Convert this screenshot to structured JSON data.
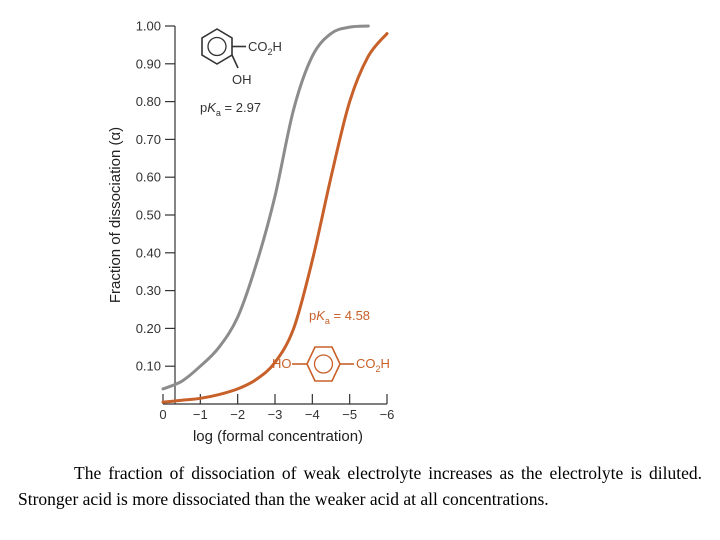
{
  "chart_data": {
    "type": "line",
    "xlabel": "log (formal concentration)",
    "ylabel": "Fraction of dissociation (α)",
    "xlim": [
      0,
      -6
    ],
    "ylim": [
      0,
      1.0
    ],
    "x_ticks": [
      0,
      -1,
      -2,
      -3,
      -4,
      -5,
      -6
    ],
    "x_tick_labels": [
      "0",
      "−1",
      "−2",
      "−3",
      "−4",
      "−5",
      "−6"
    ],
    "y_ticks": [
      0.1,
      0.2,
      0.3,
      0.4,
      0.5,
      0.6,
      0.7,
      0.8,
      0.9,
      1.0
    ],
    "y_tick_labels": [
      "0.10",
      "0.20",
      "0.30",
      "0.40",
      "0.50",
      "0.60",
      "0.70",
      "0.80",
      "0.90",
      "1.00"
    ],
    "series": [
      {
        "pKa": 2.97,
        "color": "#8c8c8c",
        "x": [
          0,
          -0.5,
          -1,
          -1.5,
          -2,
          -2.5,
          -3,
          -3.5,
          -4,
          -4.5,
          -5,
          -5.5
        ],
        "y": [
          0.04,
          0.06,
          0.1,
          0.15,
          0.23,
          0.37,
          0.55,
          0.78,
          0.92,
          0.98,
          0.997,
          1.0
        ]
      },
      {
        "pKa": 4.58,
        "color": "#c8602a",
        "x": [
          0,
          -0.5,
          -1,
          -1.5,
          -2,
          -2.5,
          -3,
          -3.5,
          -4,
          -4.5,
          -5,
          -5.5,
          -6
        ],
        "y": [
          0.005,
          0.01,
          0.015,
          0.025,
          0.04,
          0.065,
          0.11,
          0.2,
          0.38,
          0.6,
          0.8,
          0.92,
          0.98
        ]
      }
    ],
    "annotations": [
      {
        "text_prefix": "p",
        "text_k": "K",
        "text_sub": "a",
        "text_value": " = 2.97",
        "color": "#333333"
      },
      {
        "text_prefix": "p",
        "text_k": "K",
        "text_sub": "a",
        "text_value": " = 4.58",
        "color": "#c8602a"
      }
    ],
    "structures": [
      {
        "label_right": "CO2H",
        "label_below": "OH",
        "color": "#333333"
      },
      {
        "label_left": "HO",
        "label_right": "CO2H",
        "color": "#c8602a"
      }
    ]
  },
  "caption": "The fraction of dissociation of weak electrolyte increases as the electrolyte is diluted. Stronger acid is more dissociated than the weaker acid at all concentrations."
}
